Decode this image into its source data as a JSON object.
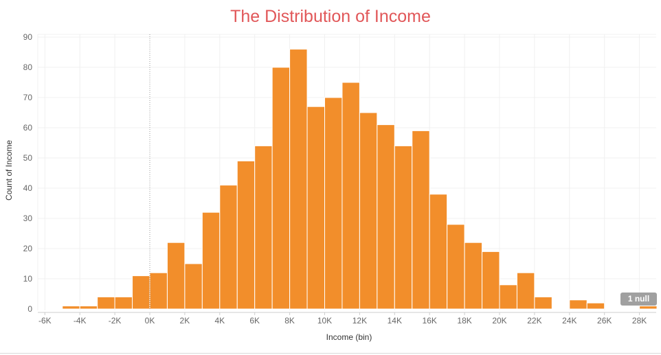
{
  "chart_data": {
    "type": "bar",
    "title": "The Distribution of Income",
    "xlabel": "Income (bin)",
    "ylabel": "Count of Income",
    "bin_width": 1000,
    "bins": [
      {
        "start": -5000,
        "count": 1
      },
      {
        "start": -4000,
        "count": 1
      },
      {
        "start": -3000,
        "count": 4
      },
      {
        "start": -2000,
        "count": 4
      },
      {
        "start": -1000,
        "count": 11
      },
      {
        "start": 0,
        "count": 12
      },
      {
        "start": 1000,
        "count": 22
      },
      {
        "start": 2000,
        "count": 15
      },
      {
        "start": 3000,
        "count": 32
      },
      {
        "start": 4000,
        "count": 41
      },
      {
        "start": 5000,
        "count": 49
      },
      {
        "start": 6000,
        "count": 54
      },
      {
        "start": 7000,
        "count": 80
      },
      {
        "start": 8000,
        "count": 86
      },
      {
        "start": 9000,
        "count": 67
      },
      {
        "start": 10000,
        "count": 70
      },
      {
        "start": 11000,
        "count": 75
      },
      {
        "start": 12000,
        "count": 65
      },
      {
        "start": 13000,
        "count": 61
      },
      {
        "start": 14000,
        "count": 54
      },
      {
        "start": 15000,
        "count": 59
      },
      {
        "start": 16000,
        "count": 38
      },
      {
        "start": 17000,
        "count": 28
      },
      {
        "start": 18000,
        "count": 22
      },
      {
        "start": 19000,
        "count": 19
      },
      {
        "start": 20000,
        "count": 8
      },
      {
        "start": 21000,
        "count": 12
      },
      {
        "start": 22000,
        "count": 4
      },
      {
        "start": 24000,
        "count": 3
      },
      {
        "start": 25000,
        "count": 2
      },
      {
        "start": 28000,
        "count": 1
      }
    ],
    "x_ticks": [
      {
        "value": -6000,
        "label": "-6K"
      },
      {
        "value": -4000,
        "label": "-4K"
      },
      {
        "value": -2000,
        "label": "-2K"
      },
      {
        "value": 0,
        "label": "0K"
      },
      {
        "value": 2000,
        "label": "2K"
      },
      {
        "value": 4000,
        "label": "4K"
      },
      {
        "value": 6000,
        "label": "6K"
      },
      {
        "value": 8000,
        "label": "8K"
      },
      {
        "value": 10000,
        "label": "10K"
      },
      {
        "value": 12000,
        "label": "12K"
      },
      {
        "value": 14000,
        "label": "14K"
      },
      {
        "value": 16000,
        "label": "16K"
      },
      {
        "value": 18000,
        "label": "18K"
      },
      {
        "value": 20000,
        "label": "20K"
      },
      {
        "value": 22000,
        "label": "22K"
      },
      {
        "value": 24000,
        "label": "24K"
      },
      {
        "value": 26000,
        "label": "26K"
      },
      {
        "value": 28000,
        "label": "28K"
      }
    ],
    "y_ticks": [
      0,
      10,
      20,
      30,
      40,
      50,
      60,
      70,
      80,
      90
    ],
    "xlim": [
      -6500,
      28500
    ],
    "ylim": [
      0,
      92
    ],
    "grid": true,
    "zero_reference_line": {
      "value": 0,
      "style": "dotted"
    },
    "null_indicator": "1 null"
  },
  "colors": {
    "bar": "#f28e2b",
    "bar_edge": "#ffffff",
    "title": "#e15759",
    "gridline": "#f0f0f0",
    "badge": "#a0a0a0"
  }
}
